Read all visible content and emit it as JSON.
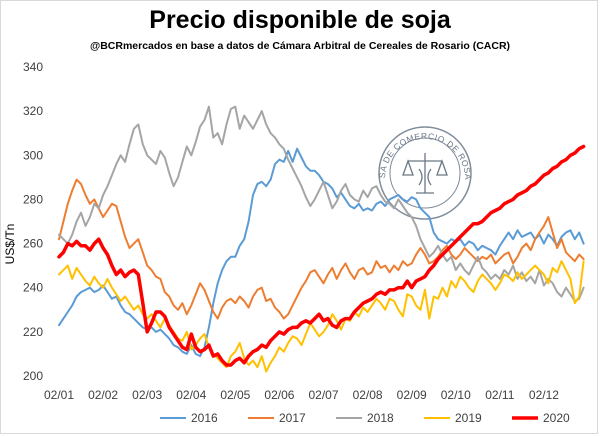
{
  "title": "Precio disponible de soja",
  "subtitle": "@BCRmercados en base a datos de Cámara Arbitral de Cereales de Rosario (CACR)",
  "seal": {
    "text": "BOLSA DE COMERCIO DE ROSARIO",
    "icon": "scales-of-justice-icon"
  },
  "chart_data": {
    "type": "line",
    "title": "Precio disponible de soja",
    "xlabel": "",
    "ylabel": "US$/Tn",
    "ylim": [
      200,
      340
    ],
    "yticks": [
      200,
      220,
      240,
      260,
      280,
      300,
      320,
      340
    ],
    "xticks": [
      "02/01",
      "02/02",
      "02/03",
      "02/04",
      "02/05",
      "02/06",
      "02/07",
      "02/08",
      "02/09",
      "02/10",
      "02/11",
      "02/12"
    ],
    "legend_position": "bottom",
    "grid": false,
    "series": [
      {
        "name": "2016",
        "color": "#5b9bd5",
        "width": 2,
        "x": [
          0,
          0.1,
          0.2,
          0.3,
          0.4,
          0.5,
          0.6,
          0.7,
          0.8,
          0.9,
          1,
          1.1,
          1.2,
          1.3,
          1.4,
          1.5,
          1.6,
          1.7,
          1.8,
          1.9,
          2,
          2.1,
          2.2,
          2.3,
          2.4,
          2.5,
          2.6,
          2.7,
          2.8,
          2.9,
          3,
          3.1,
          3.2,
          3.3,
          3.4,
          3.5,
          3.6,
          3.7,
          3.8,
          3.9,
          4,
          4.1,
          4.2,
          4.3,
          4.4,
          4.5,
          4.6,
          4.7,
          4.8,
          4.9,
          5,
          5.1,
          5.2,
          5.3,
          5.4,
          5.5,
          5.6,
          5.7,
          5.8,
          5.9,
          6,
          6.1,
          6.2,
          6.3,
          6.4,
          6.5,
          6.6,
          6.7,
          6.8,
          6.9,
          7,
          7.1,
          7.2,
          7.3,
          7.4,
          7.5,
          7.6,
          7.7,
          7.8,
          7.9,
          8,
          8.1,
          8.2,
          8.3,
          8.4,
          8.5,
          8.6,
          8.7,
          8.8,
          8.9,
          9,
          9.1,
          9.2,
          9.3,
          9.4,
          9.5,
          9.6,
          9.7,
          9.8,
          9.9,
          10,
          10.1,
          10.2,
          10.3,
          10.4,
          10.5,
          10.6,
          10.7,
          10.8,
          10.9,
          11,
          11.1,
          11.2,
          11.3,
          11.4,
          11.5,
          11.6,
          11.7,
          11.8,
          11.9
        ],
        "y": [
          223,
          226,
          229,
          232,
          236,
          238,
          239,
          240,
          238,
          239,
          241,
          238,
          235,
          236,
          232,
          229,
          228,
          226,
          224,
          222,
          221,
          222,
          220,
          221,
          219,
          217,
          214,
          213,
          211,
          210,
          214,
          210,
          209,
          213,
          222,
          233,
          242,
          248,
          252,
          254,
          254,
          259,
          262,
          270,
          282,
          287,
          288,
          286,
          289,
          296,
          298,
          297,
          302,
          297,
          303,
          299,
          295,
          293,
          293,
          291,
          288,
          287,
          285,
          281,
          283,
          280,
          277,
          276,
          278,
          275,
          276,
          275,
          278,
          279,
          277,
          280,
          281,
          282,
          280,
          279,
          281,
          280,
          276,
          274,
          272,
          265,
          262,
          261,
          260,
          262,
          261,
          262,
          259,
          261,
          260,
          257,
          259,
          258,
          257,
          255,
          259,
          262,
          265,
          262,
          266,
          263,
          264,
          265,
          262,
          264,
          260,
          264,
          262,
          259,
          263,
          265,
          266,
          262,
          265,
          260
        ]
      },
      {
        "name": "2017",
        "color": "#ed7d31",
        "width": 2,
        "x": [
          0,
          0.1,
          0.2,
          0.3,
          0.4,
          0.5,
          0.6,
          0.7,
          0.8,
          0.9,
          1,
          1.1,
          1.2,
          1.3,
          1.4,
          1.5,
          1.6,
          1.7,
          1.8,
          1.9,
          2,
          2.1,
          2.2,
          2.3,
          2.4,
          2.5,
          2.6,
          2.7,
          2.8,
          2.9,
          3,
          3.1,
          3.2,
          3.3,
          3.4,
          3.5,
          3.6,
          3.7,
          3.8,
          3.9,
          4,
          4.1,
          4.2,
          4.3,
          4.4,
          4.5,
          4.6,
          4.7,
          4.8,
          4.9,
          5,
          5.1,
          5.2,
          5.3,
          5.4,
          5.5,
          5.6,
          5.7,
          5.8,
          5.9,
          6,
          6.1,
          6.2,
          6.3,
          6.4,
          6.5,
          6.6,
          6.7,
          6.8,
          6.9,
          7,
          7.1,
          7.2,
          7.3,
          7.4,
          7.5,
          7.6,
          7.7,
          7.8,
          7.9,
          8,
          8.1,
          8.2,
          8.3,
          8.4,
          8.5,
          8.6,
          8.7,
          8.8,
          8.9,
          9,
          9.1,
          9.2,
          9.3,
          9.4,
          9.5,
          9.6,
          9.7,
          9.8,
          9.9,
          10,
          10.1,
          10.2,
          10.3,
          10.4,
          10.5,
          10.6,
          10.7,
          10.8,
          10.9,
          11,
          11.1,
          11.2,
          11.3,
          11.4,
          11.5,
          11.6,
          11.7,
          11.8,
          11.9
        ],
        "y": [
          262,
          270,
          278,
          284,
          289,
          287,
          282,
          278,
          280,
          276,
          272,
          275,
          278,
          277,
          270,
          263,
          258,
          260,
          262,
          256,
          250,
          248,
          245,
          244,
          238,
          236,
          232,
          230,
          233,
          228,
          232,
          237,
          242,
          239,
          234,
          229,
          226,
          231,
          234,
          235,
          233,
          236,
          234,
          231,
          236,
          239,
          240,
          234,
          235,
          231,
          229,
          226,
          228,
          232,
          236,
          240,
          243,
          247,
          248,
          245,
          242,
          246,
          249,
          244,
          248,
          251,
          247,
          244,
          248,
          249,
          246,
          247,
          252,
          249,
          250,
          247,
          250,
          248,
          252,
          250,
          251,
          255,
          258,
          255,
          251,
          252,
          254,
          257,
          259,
          255,
          253,
          255,
          258,
          256,
          254,
          252,
          254,
          253,
          255,
          251,
          253,
          255,
          256,
          251,
          254,
          258,
          260,
          257,
          262,
          265,
          268,
          272,
          265,
          258,
          262,
          256,
          254,
          252,
          255,
          253
        ]
      },
      {
        "name": "2018",
        "color": "#a5a5a5",
        "width": 2,
        "x": [
          0,
          0.1,
          0.2,
          0.3,
          0.4,
          0.5,
          0.6,
          0.7,
          0.8,
          0.9,
          1,
          1.1,
          1.2,
          1.3,
          1.4,
          1.5,
          1.6,
          1.7,
          1.8,
          1.9,
          2,
          2.1,
          2.2,
          2.3,
          2.4,
          2.5,
          2.6,
          2.7,
          2.8,
          2.9,
          3,
          3.1,
          3.2,
          3.3,
          3.4,
          3.5,
          3.6,
          3.7,
          3.8,
          3.9,
          4,
          4.1,
          4.2,
          4.3,
          4.4,
          4.5,
          4.6,
          4.7,
          4.8,
          4.9,
          5,
          5.1,
          5.2,
          5.3,
          5.4,
          5.5,
          5.6,
          5.7,
          5.8,
          5.9,
          6,
          6.1,
          6.2,
          6.3,
          6.4,
          6.5,
          6.6,
          6.7,
          6.8,
          6.9,
          7,
          7.1,
          7.2,
          7.3,
          7.4,
          7.5,
          7.6,
          7.7,
          7.8,
          7.9,
          8,
          8.1,
          8.2,
          8.3,
          8.4,
          8.5,
          8.6,
          8.7,
          8.8,
          8.9,
          9,
          9.1,
          9.2,
          9.3,
          9.4,
          9.5,
          9.6,
          9.7,
          9.8,
          9.9,
          10,
          10.1,
          10.2,
          10.3,
          10.4,
          10.5,
          10.6,
          10.7,
          10.8,
          10.9,
          11,
          11.1,
          11.2,
          11.3,
          11.4,
          11.5,
          11.6,
          11.7,
          11.8,
          11.9
        ],
        "y": [
          264,
          262,
          260,
          264,
          270,
          274,
          268,
          272,
          278,
          276,
          282,
          286,
          291,
          296,
          300,
          297,
          305,
          312,
          314,
          305,
          300,
          298,
          296,
          302,
          299,
          292,
          286,
          290,
          297,
          304,
          300,
          306,
          313,
          316,
          322,
          308,
          310,
          305,
          314,
          321,
          322,
          312,
          318,
          315,
          312,
          316,
          320,
          314,
          310,
          308,
          305,
          303,
          298,
          294,
          290,
          286,
          281,
          277,
          280,
          284,
          288,
          282,
          276,
          279,
          284,
          287,
          282,
          280,
          279,
          284,
          281,
          285,
          286,
          282,
          279,
          278,
          276,
          280,
          277,
          274,
          272,
          268,
          262,
          258,
          254,
          256,
          259,
          255,
          252,
          254,
          248,
          251,
          248,
          246,
          250,
          254,
          249,
          247,
          244,
          246,
          244,
          248,
          246,
          250,
          244,
          247,
          243,
          245,
          242,
          248,
          241,
          244,
          242,
          238,
          236,
          240,
          237,
          234,
          235,
          240
        ]
      },
      {
        "name": "2019",
        "color": "#ffc000",
        "width": 2,
        "x": [
          0,
          0.1,
          0.2,
          0.3,
          0.4,
          0.5,
          0.6,
          0.7,
          0.8,
          0.9,
          1,
          1.1,
          1.2,
          1.3,
          1.4,
          1.5,
          1.6,
          1.7,
          1.8,
          1.9,
          2,
          2.1,
          2.2,
          2.3,
          2.4,
          2.5,
          2.6,
          2.7,
          2.8,
          2.9,
          3,
          3.1,
          3.2,
          3.3,
          3.4,
          3.5,
          3.6,
          3.7,
          3.8,
          3.9,
          4,
          4.1,
          4.2,
          4.3,
          4.4,
          4.5,
          4.6,
          4.7,
          4.8,
          4.9,
          5,
          5.1,
          5.2,
          5.3,
          5.4,
          5.5,
          5.6,
          5.7,
          5.8,
          5.9,
          6,
          6.1,
          6.2,
          6.3,
          6.4,
          6.5,
          6.6,
          6.7,
          6.8,
          6.9,
          7,
          7.1,
          7.2,
          7.3,
          7.4,
          7.5,
          7.6,
          7.7,
          7.8,
          7.9,
          8,
          8.1,
          8.2,
          8.3,
          8.4,
          8.5,
          8.6,
          8.7,
          8.8,
          8.9,
          9,
          9.1,
          9.2,
          9.3,
          9.4,
          9.5,
          9.6,
          9.7,
          9.8,
          9.9,
          10,
          10.1,
          10.2,
          10.3,
          10.4,
          10.5,
          10.6,
          10.7,
          10.8,
          10.9,
          11,
          11.1,
          11.2,
          11.3,
          11.4,
          11.5,
          11.6,
          11.7,
          11.8,
          11.9
        ],
        "y": [
          246,
          248,
          250,
          244,
          249,
          246,
          243,
          241,
          245,
          242,
          240,
          244,
          240,
          237,
          234,
          236,
          233,
          230,
          232,
          228,
          226,
          228,
          225,
          222,
          226,
          223,
          220,
          217,
          216,
          220,
          212,
          214,
          217,
          219,
          213,
          210,
          208,
          206,
          204,
          209,
          211,
          215,
          208,
          205,
          207,
          204,
          209,
          202,
          206,
          209,
          213,
          211,
          215,
          218,
          217,
          214,
          219,
          224,
          221,
          218,
          220,
          223,
          228,
          225,
          221,
          226,
          225,
          229,
          227,
          231,
          229,
          232,
          235,
          233,
          230,
          235,
          234,
          230,
          227,
          237,
          236,
          232,
          230,
          239,
          226,
          236,
          235,
          240,
          236,
          243,
          240,
          245,
          243,
          240,
          238,
          243,
          246,
          244,
          242,
          239,
          242,
          246,
          245,
          243,
          247,
          244,
          246,
          248,
          250,
          248,
          246,
          242,
          249,
          247,
          252,
          248,
          244,
          233,
          236,
          252
        ]
      },
      {
        "name": "2020",
        "color": "#ff0000",
        "width": 3.5,
        "x": [
          0,
          0.1,
          0.2,
          0.3,
          0.4,
          0.5,
          0.6,
          0.7,
          0.8,
          0.9,
          1,
          1.1,
          1.2,
          1.3,
          1.4,
          1.5,
          1.6,
          1.7,
          1.8,
          1.9,
          2,
          2.1,
          2.2,
          2.3,
          2.4,
          2.5,
          2.6,
          2.7,
          2.8,
          2.9,
          3,
          3.1,
          3.2,
          3.3,
          3.4,
          3.5,
          3.6,
          3.7,
          3.8,
          3.9,
          4,
          4.1,
          4.2,
          4.3,
          4.4,
          4.5,
          4.6,
          4.7,
          4.8,
          4.9,
          5,
          5.1,
          5.2,
          5.3,
          5.4,
          5.5,
          5.6,
          5.7,
          5.8,
          5.9,
          6,
          6.1,
          6.2,
          6.3,
          6.4,
          6.5,
          6.6,
          6.7,
          6.8,
          6.9,
          7,
          7.1,
          7.2,
          7.3,
          7.4,
          7.5,
          7.6,
          7.7,
          7.8,
          7.9,
          8,
          8.1,
          8.2,
          8.3,
          8.4,
          8.5,
          8.6,
          8.7,
          8.8,
          8.9,
          9,
          9.1,
          9.2,
          9.3,
          9.4,
          9.5,
          9.6,
          9.7,
          9.8,
          9.9,
          10,
          10.1,
          10.2,
          10.3,
          10.4,
          10.5,
          10.6,
          10.7,
          10.8,
          10.9,
          11,
          11.1,
          11.2,
          11.3,
          11.4,
          11.5,
          11.6,
          11.7,
          11.8,
          11.9
        ],
        "y": [
          254,
          256,
          260,
          259,
          261,
          259,
          259,
          257,
          260,
          262,
          258,
          255,
          250,
          246,
          248,
          245,
          247,
          248,
          246,
          233,
          220,
          224,
          229,
          229,
          227,
          222,
          219,
          216,
          213,
          212,
          219,
          213,
          211,
          212,
          214,
          209,
          210,
          207,
          205,
          205,
          207,
          208,
          206,
          209,
          211,
          212,
          214,
          213,
          216,
          218,
          220,
          219,
          221,
          222,
          222,
          224,
          225,
          224,
          226,
          228,
          225,
          226,
          223,
          222,
          225,
          226,
          226,
          229,
          231,
          233,
          234,
          235,
          237,
          238,
          237,
          239,
          239,
          240,
          240,
          243,
          240,
          243,
          244,
          245,
          248,
          250,
          253,
          255,
          257,
          259,
          261,
          263,
          265,
          267,
          269,
          269,
          270,
          272,
          274,
          275,
          276,
          278,
          279,
          280,
          282,
          283,
          284,
          286,
          287,
          289,
          291,
          292,
          294,
          295,
          297,
          298,
          300,
          301,
          303,
          304
        ]
      }
    ]
  }
}
